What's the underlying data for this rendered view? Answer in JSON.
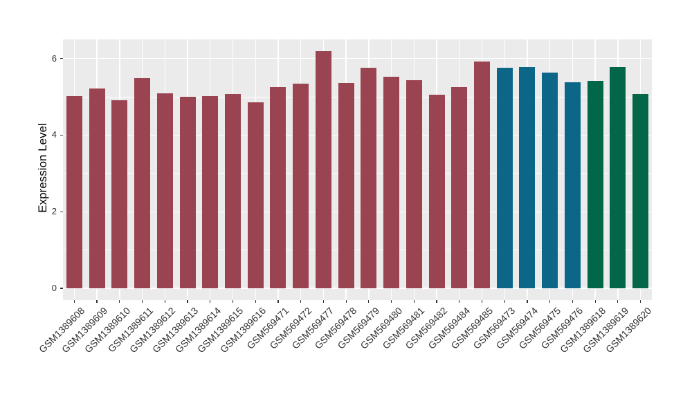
{
  "figure": {
    "background": "#FFFFFF",
    "panel_background": "#EBEBEB",
    "gridline_color": "#FFFFFF",
    "axis_text_color": "#303030",
    "tick_mark_color": "#333333"
  },
  "chart_data": {
    "type": "bar",
    "title": "",
    "xlabel": "",
    "ylabel": "Expression Level",
    "ylim": [
      0,
      6.5
    ],
    "yticks": [
      0,
      2,
      4,
      6
    ],
    "y_minor_gridlines": [
      1,
      3,
      5
    ],
    "grid": "on",
    "legend": "none",
    "group_colors": {
      "maroon": "#9A4451",
      "teal": "#0C6687",
      "green": "#016748"
    },
    "bars": [
      {
        "label": "GSM1389608",
        "value": 5.02,
        "group": "maroon"
      },
      {
        "label": "GSM1389609",
        "value": 5.22,
        "group": "maroon"
      },
      {
        "label": "GSM1389610",
        "value": 4.91,
        "group": "maroon"
      },
      {
        "label": "GSM1389611",
        "value": 5.48,
        "group": "maroon"
      },
      {
        "label": "GSM1389612",
        "value": 5.09,
        "group": "maroon"
      },
      {
        "label": "GSM1389613",
        "value": 5.0,
        "group": "maroon"
      },
      {
        "label": "GSM1389614",
        "value": 5.01,
        "group": "maroon"
      },
      {
        "label": "GSM1389615",
        "value": 5.08,
        "group": "maroon"
      },
      {
        "label": "GSM1389616",
        "value": 4.86,
        "group": "maroon"
      },
      {
        "label": "GSM569471",
        "value": 5.26,
        "group": "maroon"
      },
      {
        "label": "GSM569472",
        "value": 5.34,
        "group": "maroon"
      },
      {
        "label": "GSM569477",
        "value": 6.2,
        "group": "maroon"
      },
      {
        "label": "GSM569478",
        "value": 5.37,
        "group": "maroon"
      },
      {
        "label": "GSM569479",
        "value": 5.75,
        "group": "maroon"
      },
      {
        "label": "GSM569480",
        "value": 5.53,
        "group": "maroon"
      },
      {
        "label": "GSM569481",
        "value": 5.44,
        "group": "maroon"
      },
      {
        "label": "GSM569482",
        "value": 5.06,
        "group": "maroon"
      },
      {
        "label": "GSM569484",
        "value": 5.25,
        "group": "maroon"
      },
      {
        "label": "GSM569485",
        "value": 5.92,
        "group": "maroon"
      },
      {
        "label": "GSM569473",
        "value": 5.76,
        "group": "teal"
      },
      {
        "label": "GSM569474",
        "value": 5.78,
        "group": "teal"
      },
      {
        "label": "GSM569475",
        "value": 5.64,
        "group": "teal"
      },
      {
        "label": "GSM569476",
        "value": 5.38,
        "group": "teal"
      },
      {
        "label": "GSM1389618",
        "value": 5.42,
        "group": "green"
      },
      {
        "label": "GSM1389619",
        "value": 5.78,
        "group": "green"
      },
      {
        "label": "GSM1389620",
        "value": 5.07,
        "group": "green"
      }
    ]
  }
}
